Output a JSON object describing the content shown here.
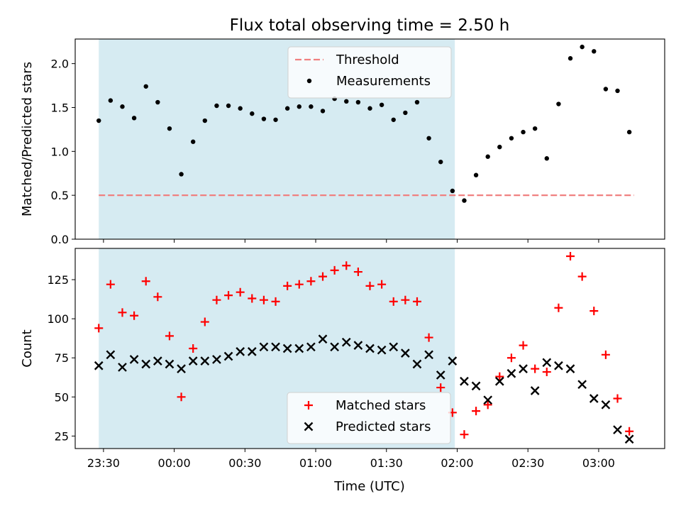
{
  "chart_data": {
    "title": "Flux total observing time = 2.50 h",
    "xlabel": "Time (UTC)",
    "x_tick_labels": [
      "23:30",
      "00:00",
      "00:30",
      "01:00",
      "01:30",
      "02:00",
      "02:30",
      "03:00"
    ],
    "x_tick_minutes": [
      1410,
      1440,
      1470,
      1500,
      1530,
      1560,
      1590,
      1620
    ],
    "x_range_minutes": [
      1398,
      1648
    ],
    "shaded_span_minutes": [
      1408,
      1559
    ],
    "shade_color": "#add8e6",
    "panels": [
      {
        "type": "scatter",
        "ylabel": "Matched/Predicted stars",
        "ylim": [
          0,
          2.28
        ],
        "y_ticks": [
          "0.0",
          "0.5",
          "1.0",
          "1.5",
          "2.0"
        ],
        "legend_position": "upper center",
        "threshold": {
          "name": "Threshold",
          "value": 0.5,
          "x_from": 1408,
          "x_to": 1635,
          "color": "#f08080"
        },
        "series": [
          {
            "name": "Measurements",
            "marker": "dot",
            "color": "#000000",
            "x": [
              1408,
              1413,
              1418,
              1423,
              1428,
              1433,
              1438,
              1443,
              1448,
              1453,
              1458,
              1463,
              1468,
              1473,
              1478,
              1483,
              1488,
              1493,
              1498,
              1503,
              1508,
              1513,
              1518,
              1523,
              1528,
              1533,
              1538,
              1543,
              1548,
              1553,
              1558,
              1563,
              1568,
              1573,
              1578,
              1583,
              1588,
              1593,
              1598,
              1603,
              1608,
              1613,
              1618,
              1623,
              1628,
              1633
            ],
            "y": [
              1.35,
              1.58,
              1.51,
              1.38,
              1.74,
              1.56,
              1.26,
              0.74,
              1.11,
              1.35,
              1.52,
              1.52,
              1.49,
              1.43,
              1.37,
              1.36,
              1.49,
              1.51,
              1.51,
              1.46,
              1.6,
              1.57,
              1.56,
              1.49,
              1.53,
              1.36,
              1.44,
              1.56,
              1.15,
              0.88,
              0.55,
              0.44,
              0.73,
              0.94,
              1.05,
              1.15,
              1.22,
              1.26,
              0.92,
              1.54,
              2.06,
              2.19,
              2.14,
              1.71,
              1.69,
              1.22
            ]
          }
        ]
      },
      {
        "type": "scatter",
        "ylabel": "Count",
        "ylim": [
          17,
          145
        ],
        "y_ticks": [
          "25",
          "50",
          "75",
          "100",
          "125"
        ],
        "legend_position": "lower center",
        "series": [
          {
            "name": "Matched stars",
            "marker": "plus",
            "color": "#ff0000",
            "x": [
              1408,
              1413,
              1418,
              1423,
              1428,
              1433,
              1438,
              1443,
              1448,
              1453,
              1458,
              1463,
              1468,
              1473,
              1478,
              1483,
              1488,
              1493,
              1498,
              1503,
              1508,
              1513,
              1518,
              1523,
              1528,
              1533,
              1538,
              1543,
              1548,
              1553,
              1558,
              1563,
              1568,
              1573,
              1578,
              1583,
              1588,
              1593,
              1598,
              1603,
              1608,
              1613,
              1618,
              1623,
              1628,
              1633
            ],
            "y": [
              94,
              122,
              104,
              102,
              124,
              114,
              89,
              50,
              81,
              98,
              112,
              115,
              117,
              113,
              112,
              111,
              121,
              122,
              124,
              127,
              131,
              134,
              130,
              121,
              122,
              111,
              112,
              111,
              88,
              56,
              40,
              26,
              41,
              45,
              63,
              75,
              83,
              68,
              66,
              107,
              140,
              127,
              105,
              77,
              49,
              28
            ]
          },
          {
            "name": "Predicted stars",
            "marker": "x",
            "color": "#000000",
            "x": [
              1408,
              1413,
              1418,
              1423,
              1428,
              1433,
              1438,
              1443,
              1448,
              1453,
              1458,
              1463,
              1468,
              1473,
              1478,
              1483,
              1488,
              1493,
              1498,
              1503,
              1508,
              1513,
              1518,
              1523,
              1528,
              1533,
              1538,
              1543,
              1548,
              1553,
              1558,
              1563,
              1568,
              1573,
              1578,
              1583,
              1588,
              1593,
              1598,
              1603,
              1608,
              1613,
              1618,
              1623,
              1628,
              1633
            ],
            "y": [
              70,
              77,
              69,
              74,
              71,
              73,
              71,
              68,
              73,
              73,
              74,
              76,
              79,
              79,
              82,
              82,
              81,
              81,
              82,
              87,
              82,
              85,
              83,
              81,
              80,
              82,
              78,
              71,
              77,
              64,
              73,
              60,
              57,
              48,
              60,
              65,
              68,
              54,
              72,
              70,
              68,
              58,
              49,
              45,
              29,
              23
            ]
          }
        ]
      }
    ]
  }
}
